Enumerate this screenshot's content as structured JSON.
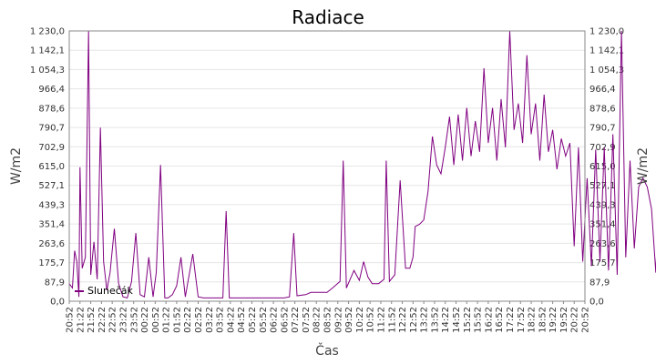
{
  "chart_data": {
    "type": "line",
    "title": "Radiace",
    "xlabel": "Čas",
    "ylabel_left": "W/m2",
    "ylabel_right": "W/m2",
    "ylim": [
      0,
      1230
    ],
    "y_ticks": [
      "0,0",
      "87,9",
      "175,7",
      "263,6",
      "351,4",
      "439,3",
      "527,1",
      "615,0",
      "702,9",
      "790,7",
      "878,6",
      "966,4",
      "1 054,3",
      "1 142,1",
      "1 230,0"
    ],
    "x_ticks": [
      "20:52",
      "21:22",
      "21:52",
      "22:22",
      "22:52",
      "23:22",
      "23:52",
      "00:22",
      "00:52",
      "01:22",
      "01:52",
      "02:22",
      "02:52",
      "03:22",
      "03:52",
      "04:22",
      "04:52",
      "05:22",
      "05:52",
      "06:22",
      "06:52",
      "07:22",
      "07:52",
      "08:22",
      "08:52",
      "09:22",
      "09:52",
      "10:22",
      "10:52",
      "11:22",
      "11:52",
      "12:22",
      "12:52",
      "13:22",
      "13:52",
      "14:22",
      "14:52",
      "15:22",
      "15:52",
      "16:22",
      "16:52",
      "17:22",
      "17:52",
      "18:22",
      "18:52",
      "19:22",
      "19:52",
      "20:22",
      "20:52"
    ],
    "series": [
      {
        "name": "Slunečák",
        "color": "#800080",
        "points": [
          [
            0,
            80
          ],
          [
            0.3,
            60
          ],
          [
            0.5,
            230
          ],
          [
            0.7,
            180
          ],
          [
            0.9,
            20
          ],
          [
            1.0,
            610
          ],
          [
            1.2,
            150
          ],
          [
            1.5,
            200
          ],
          [
            1.8,
            1230
          ],
          [
            2.0,
            120
          ],
          [
            2.3,
            270
          ],
          [
            2.6,
            100
          ],
          [
            2.9,
            790
          ],
          [
            3.2,
            180
          ],
          [
            3.5,
            50
          ],
          [
            3.8,
            130
          ],
          [
            4.2,
            330
          ],
          [
            4.6,
            80
          ],
          [
            5.0,
            20
          ],
          [
            5.4,
            15
          ],
          [
            5.8,
            90
          ],
          [
            6.2,
            310
          ],
          [
            6.6,
            30
          ],
          [
            7.0,
            20
          ],
          [
            7.4,
            200
          ],
          [
            7.8,
            20
          ],
          [
            8.1,
            130
          ],
          [
            8.5,
            620
          ],
          [
            8.9,
            15
          ],
          [
            9.2,
            15
          ],
          [
            9.6,
            30
          ],
          [
            10.0,
            70
          ],
          [
            10.4,
            200
          ],
          [
            10.8,
            20
          ],
          [
            11.5,
            215
          ],
          [
            12.0,
            20
          ],
          [
            12.5,
            15
          ],
          [
            13.0,
            15
          ],
          [
            13.5,
            15
          ],
          [
            14.0,
            15
          ],
          [
            14.3,
            15
          ],
          [
            14.6,
            410
          ],
          [
            14.9,
            15
          ],
          [
            15.5,
            15
          ],
          [
            16.0,
            15
          ],
          [
            16.5,
            15
          ],
          [
            17.0,
            15
          ],
          [
            17.5,
            15
          ],
          [
            18.0,
            15
          ],
          [
            18.5,
            15
          ],
          [
            19.0,
            15
          ],
          [
            19.5,
            15
          ],
          [
            20.0,
            15
          ],
          [
            20.5,
            20
          ],
          [
            20.9,
            310
          ],
          [
            21.2,
            25
          ],
          [
            22.0,
            30
          ],
          [
            22.5,
            40
          ],
          [
            23.2,
            40
          ],
          [
            24.0,
            40
          ],
          [
            24.5,
            60
          ],
          [
            25.2,
            90
          ],
          [
            25.5,
            640
          ],
          [
            25.8,
            60
          ],
          [
            26.5,
            140
          ],
          [
            27.0,
            95
          ],
          [
            27.4,
            180
          ],
          [
            27.8,
            110
          ],
          [
            28.2,
            80
          ],
          [
            28.8,
            80
          ],
          [
            29.3,
            100
          ],
          [
            29.5,
            640
          ],
          [
            29.8,
            90
          ],
          [
            30.3,
            120
          ],
          [
            30.8,
            550
          ],
          [
            31.3,
            150
          ],
          [
            31.7,
            150
          ],
          [
            32.0,
            200
          ],
          [
            32.2,
            340
          ],
          [
            32.6,
            350
          ],
          [
            33.0,
            370
          ],
          [
            33.4,
            500
          ],
          [
            33.8,
            750
          ],
          [
            34.2,
            620
          ],
          [
            34.6,
            580
          ],
          [
            35.0,
            700
          ],
          [
            35.4,
            840
          ],
          [
            35.8,
            620
          ],
          [
            36.2,
            850
          ],
          [
            36.6,
            640
          ],
          [
            37.0,
            880
          ],
          [
            37.4,
            660
          ],
          [
            37.8,
            820
          ],
          [
            38.2,
            680
          ],
          [
            38.6,
            1060
          ],
          [
            39.0,
            720
          ],
          [
            39.4,
            880
          ],
          [
            39.8,
            640
          ],
          [
            40.2,
            920
          ],
          [
            40.6,
            700
          ],
          [
            41.0,
            1230
          ],
          [
            41.4,
            780
          ],
          [
            41.8,
            900
          ],
          [
            42.2,
            720
          ],
          [
            42.6,
            1120
          ],
          [
            43.0,
            760
          ],
          [
            43.4,
            900
          ],
          [
            43.8,
            640
          ],
          [
            44.2,
            940
          ],
          [
            44.6,
            680
          ],
          [
            45.0,
            780
          ],
          [
            45.4,
            600
          ],
          [
            45.8,
            740
          ],
          [
            46.2,
            660
          ],
          [
            46.6,
            720
          ],
          [
            47.0,
            250
          ],
          [
            47.4,
            700
          ],
          [
            47.8,
            180
          ],
          [
            48.2,
            560
          ],
          [
            48.6,
            160
          ],
          [
            49.0,
            690
          ],
          [
            49.4,
            180
          ],
          [
            49.8,
            700
          ],
          [
            50.2,
            140
          ],
          [
            50.6,
            760
          ],
          [
            51.0,
            120
          ],
          [
            51.4,
            1230
          ],
          [
            51.8,
            200
          ],
          [
            52.2,
            640
          ],
          [
            52.6,
            240
          ],
          [
            53.0,
            520
          ],
          [
            53.4,
            560
          ],
          [
            53.8,
            520
          ],
          [
            54.2,
            420
          ],
          [
            54.6,
            130
          ],
          [
            55.0,
            620
          ],
          [
            55.4,
            100
          ],
          [
            55.8,
            280
          ],
          [
            56.2,
            80
          ],
          [
            56.6,
            590
          ],
          [
            57.0,
            70
          ],
          [
            57.4,
            65
          ],
          [
            58.0,
            60
          ],
          [
            58.5,
            50
          ],
          [
            59.0,
            40
          ],
          [
            60.0,
            35
          ],
          [
            61.0,
            30
          ],
          [
            62.0,
            25
          ],
          [
            62.5,
            25
          ]
        ]
      }
    ]
  },
  "legend": {
    "items": [
      {
        "label": "Slunečák",
        "color": "#800080"
      }
    ]
  }
}
